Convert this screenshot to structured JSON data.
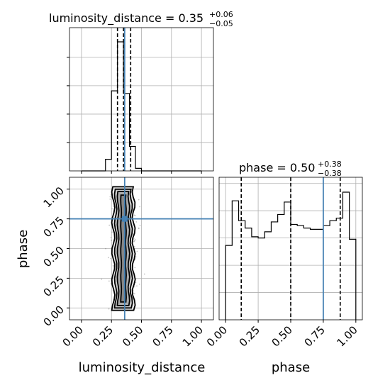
{
  "chart_data": [
    {
      "type": "histogram",
      "panel": "luminosity_distance-marginal",
      "title": {
        "main": "luminosity_distance = 0.35",
        "sup": "+0.06",
        "sub": "−0.05"
      },
      "xlim": [
        -0.1,
        1.1
      ],
      "ylim": [
        0,
        1.0
      ],
      "x_ticks": [
        0.0,
        0.25,
        0.5,
        0.75,
        1.0
      ],
      "bin_edges": [
        0.0,
        0.05,
        0.1,
        0.15,
        0.2,
        0.25,
        0.3,
        0.35,
        0.4,
        0.45,
        0.5,
        0.55,
        0.6,
        0.65,
        0.7,
        0.75,
        0.8,
        0.85,
        0.9,
        0.95,
        1.0
      ],
      "counts": [
        0,
        0,
        0,
        0,
        0.09,
        0.62,
        1.0,
        0.6,
        0.19,
        0.02,
        0,
        0,
        0,
        0,
        0,
        0,
        0,
        0,
        0,
        0
      ],
      "quantile_lines": [
        0.3,
        0.41
      ],
      "median_line": 0.35,
      "truth_line": 0.36,
      "grid": true
    },
    {
      "type": "histogram",
      "panel": "phase-marginal",
      "title": {
        "main": "phase = 0.50",
        "sup": "+0.38",
        "sub": "−0.38"
      },
      "xlim": [
        -0.05,
        1.05
      ],
      "ylim": [
        0,
        1.15
      ],
      "x_ticks": [
        0.0,
        0.25,
        0.5,
        0.75,
        1.0
      ],
      "x_tick_labels": [
        "0.00",
        "0.25",
        "0.50",
        "0.75",
        "1.00"
      ],
      "xlabel": "phase",
      "bin_edges": [
        0.0,
        0.05,
        0.1,
        0.15,
        0.2,
        0.25,
        0.3,
        0.35,
        0.4,
        0.45,
        0.5,
        0.55,
        0.6,
        0.65,
        0.7,
        0.75,
        0.8,
        0.85,
        0.9,
        0.95,
        1.0
      ],
      "counts": [
        0.6,
        0.96,
        0.8,
        0.74,
        0.67,
        0.66,
        0.71,
        0.79,
        0.85,
        0.95,
        0.77,
        0.76,
        0.74,
        0.73,
        0.73,
        0.76,
        0.8,
        0.82,
        1.03,
        0.65
      ],
      "quantile_lines": [
        0.12,
        0.5,
        0.88
      ],
      "truth_line": 0.75,
      "grid": true
    },
    {
      "type": "2d-density",
      "panel": "phase-vs-luminosity_distance",
      "xlim": [
        -0.1,
        1.1
      ],
      "ylim": [
        -0.1,
        1.1
      ],
      "x_ticks": [
        0.0,
        0.25,
        0.5,
        0.75,
        1.0
      ],
      "x_tick_labels": [
        "0.00",
        "0.25",
        "0.50",
        "0.75",
        "1.00"
      ],
      "y_ticks": [
        0.0,
        0.25,
        0.5,
        0.75,
        1.0
      ],
      "y_tick_labels": [
        "0.00",
        "0.25",
        "0.50",
        "0.75",
        "1.00"
      ],
      "xlabel": "luminosity_distance",
      "ylabel": "phase",
      "contour_half_widths": [
        0.02,
        0.045,
        0.065,
        0.085
      ],
      "center_x": 0.35,
      "truth": {
        "x": 0.36,
        "y": 0.75
      },
      "grid": true
    }
  ],
  "colors": {
    "truth": "#4682b4",
    "hist": "#000000",
    "grid": "#b0b0b0",
    "density": "#808080"
  }
}
